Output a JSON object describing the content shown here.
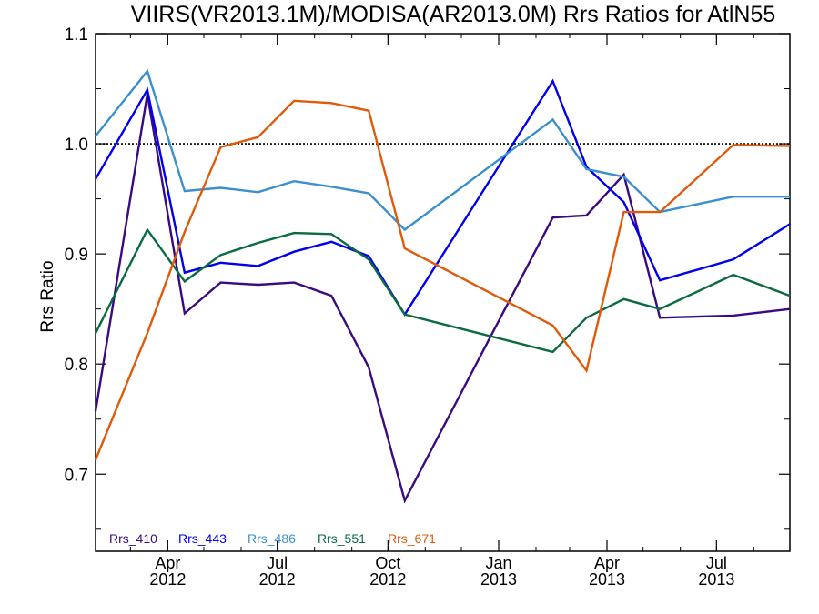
{
  "chart_data": {
    "type": "line",
    "title": "VIIRS(VR2013.1M)/MODISA(AR2013.0M)  Rrs Ratios for AtlN55",
    "xlabel": "",
    "ylabel": "Rrs Ratio",
    "ylim": [
      0.63,
      1.1
    ],
    "xlim": [
      "2012-02-01",
      "2013-08-31"
    ],
    "grid": false,
    "legend_position": "bottom-left",
    "reference_line": 1.0,
    "y_ticks": [
      "0.7",
      "0.8",
      "0.9",
      "1.0",
      "1.1"
    ],
    "x_ticks": [
      {
        "date": "2012-04-01",
        "month": "Apr",
        "year": "2012"
      },
      {
        "date": "2012-07-01",
        "month": "Jul",
        "year": "2012"
      },
      {
        "date": "2012-10-01",
        "month": "Oct",
        "year": "2012"
      },
      {
        "date": "2013-01-01",
        "month": "Jan",
        "year": "2013"
      },
      {
        "date": "2013-04-01",
        "month": "Apr",
        "year": "2013"
      },
      {
        "date": "2013-07-01",
        "month": "Jul",
        "year": "2013"
      }
    ],
    "x": [
      "2012-02-01",
      "2012-03-15",
      "2012-04-15",
      "2012-05-15",
      "2012-06-15",
      "2012-07-15",
      "2012-08-15",
      "2012-09-15",
      "2012-10-15",
      "2013-02-15",
      "2013-03-15",
      "2013-04-15",
      "2013-05-15",
      "2013-07-15",
      "2013-08-31"
    ],
    "series": [
      {
        "name": "Rrs_410",
        "color": "#3a0a80",
        "values": [
          0.757,
          1.045,
          0.846,
          0.874,
          0.872,
          0.874,
          0.862,
          0.797,
          0.676,
          0.933,
          0.935,
          0.972,
          0.842,
          0.844,
          0.85
        ]
      },
      {
        "name": "Rrs_443",
        "color": "#0000ee",
        "values": [
          0.968,
          1.049,
          0.883,
          0.892,
          0.889,
          0.902,
          0.911,
          0.898,
          0.845,
          1.057,
          0.979,
          0.947,
          0.876,
          0.895,
          0.927
        ]
      },
      {
        "name": "Rrs_486",
        "color": "#3a8fcc",
        "values": [
          1.007,
          1.066,
          0.957,
          0.96,
          0.956,
          0.966,
          0.961,
          0.955,
          0.922,
          1.022,
          0.977,
          0.97,
          0.938,
          0.952,
          0.952
        ]
      },
      {
        "name": "Rrs_551",
        "color": "#0a6b40",
        "values": [
          0.828,
          0.922,
          0.875,
          0.899,
          0.91,
          0.919,
          0.918,
          0.895,
          0.845,
          0.811,
          0.842,
          0.859,
          0.85,
          0.881,
          0.862
        ]
      },
      {
        "name": "Rrs_671",
        "color": "#e05a0a",
        "values": [
          0.713,
          0.828,
          0.92,
          0.997,
          1.006,
          1.039,
          1.037,
          1.03,
          0.905,
          0.835,
          0.794,
          0.938,
          0.938,
          0.999,
          0.998
        ]
      }
    ]
  }
}
